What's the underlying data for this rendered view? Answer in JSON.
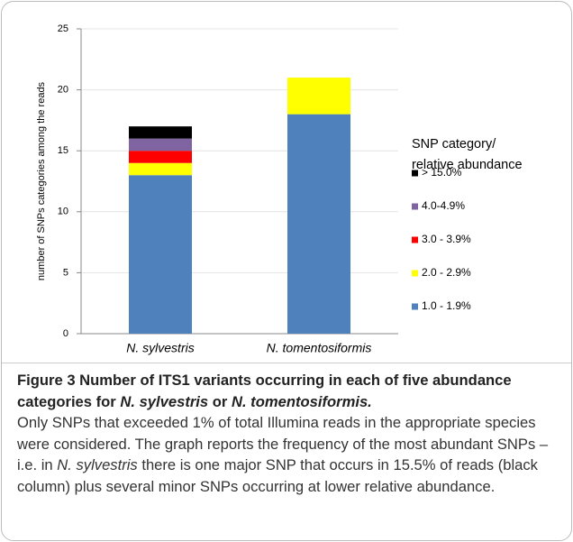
{
  "chart_data": {
    "type": "stacked_bar",
    "y_label": "number of SNPs categories among the reads",
    "categories": [
      "N. sylvestris",
      "N. tomentosiformis"
    ],
    "series": [
      {
        "name": "1.0 - 1.9%",
        "color": "#4f81bd",
        "values": [
          13,
          18
        ]
      },
      {
        "name": "2.0 - 2.9%",
        "color": "#ffff00",
        "values": [
          1,
          3
        ]
      },
      {
        "name": "3.0 - 3.9%",
        "color": "#ff0000",
        "values": [
          1,
          0
        ]
      },
      {
        "name": "4.0-4.9%",
        "color": "#8064a2",
        "values": [
          1,
          0
        ]
      },
      {
        "name": "> 15.0%",
        "color": "#000000",
        "values": [
          1,
          0
        ]
      }
    ],
    "legend_title": [
      "SNP category/",
      "relative abundance"
    ],
    "legend": "right",
    "ylim": [
      0,
      25
    ],
    "yticks": [
      0,
      5,
      10,
      15,
      20,
      25
    ],
    "grid": true
  },
  "caption": {
    "title": [
      "Figure 3 Number of ITS1 variants occurring in each of five abundance categories for ",
      "N. sylvestris",
      " or ",
      "N. tomentosiformis."
    ],
    "text": [
      "Only SNPs that exceeded 1% of total Illumina reads in the appropriate species were considered. The graph reports the frequency of the most abundant SNPs – i.e. in ",
      "N. sylvestris",
      " there is one major SNP that occurs in 15.5% of reads (black column) plus several minor SNPs occurring at lower relative abundance."
    ]
  }
}
